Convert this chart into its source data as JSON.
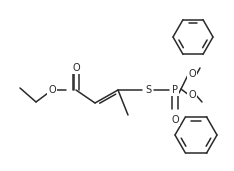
{
  "background_color": "#ffffff",
  "line_color": "#2a2a2a",
  "line_width": 1.1,
  "font_size": 7.0,
  "figsize": [
    2.34,
    1.71
  ],
  "dpi": 100,
  "xlim": [
    0,
    234
  ],
  "ylim": [
    0,
    171
  ]
}
